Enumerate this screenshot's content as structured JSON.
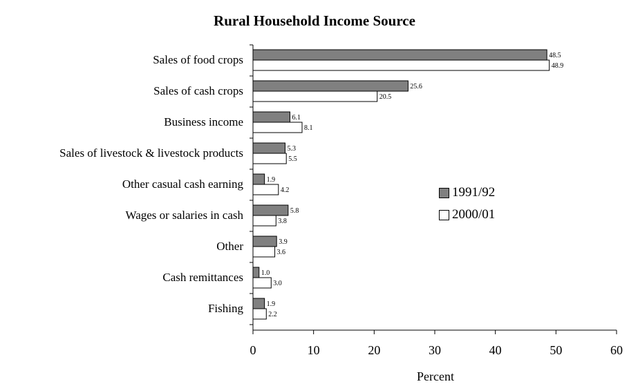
{
  "chart_data": {
    "type": "bar",
    "orientation": "horizontal",
    "title": "Rural Household Income Source",
    "xlabel": "Percent",
    "ylabel": "",
    "xlim": [
      0,
      60
    ],
    "x_ticks": [
      "0",
      "10",
      "20",
      "30",
      "40",
      "50",
      "60"
    ],
    "categories": [
      "Sales of food crops",
      "Sales of cash crops",
      "Business income",
      "Sales of livestock & livestock products",
      "Other casual cash earning",
      "Wages or salaries in cash",
      "Other",
      "Cash remittances",
      "Fishing"
    ],
    "series": [
      {
        "name": "1991/92",
        "color": "#808080",
        "values": [
          48.5,
          25.6,
          6.1,
          5.3,
          1.9,
          5.8,
          3.9,
          1.0,
          1.9
        ],
        "labels": [
          "48.5",
          "25.6",
          "6.1",
          "5.3",
          "1.9",
          "5.8",
          "3.9",
          "1.0",
          "1.9"
        ]
      },
      {
        "name": "2000/01",
        "color": "#ffffff",
        "values": [
          48.9,
          20.5,
          8.1,
          5.5,
          4.2,
          3.8,
          3.6,
          3.0,
          2.2
        ],
        "labels": [
          "48.9",
          "20.5",
          "8.1",
          "5.5",
          "4.2",
          "3.8",
          "3.6",
          "3.0",
          "2.2"
        ]
      }
    ],
    "grid": false,
    "legend_position": "right-center"
  }
}
